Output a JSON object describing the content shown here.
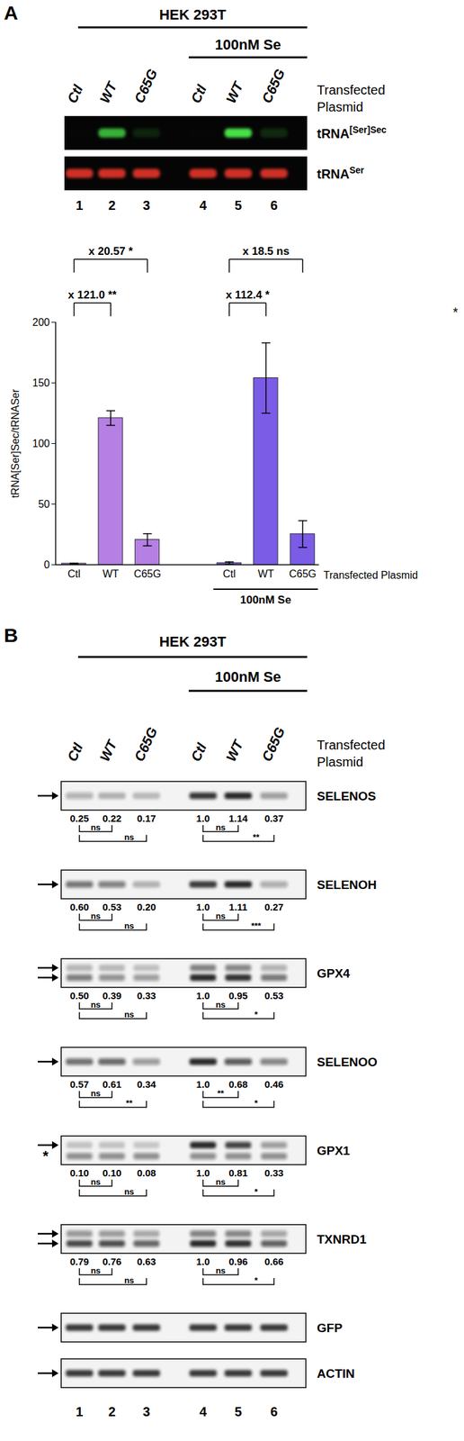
{
  "panel_a": {
    "label": "A",
    "cell_line": "HEK 293T",
    "treatment": {
      "text": "100nM Se",
      "lanes": [
        4,
        6
      ]
    },
    "lanes": [
      "Ctl",
      "WT",
      "C65G",
      "Ctl",
      "WT",
      "C65G"
    ],
    "lane_title": "Transfected Plasmid",
    "lane_numbers": [
      1,
      2,
      3,
      4,
      5,
      6
    ],
    "blots": [
      {
        "name": {
          "base": "tRNA",
          "sup": "[Ser]Sec"
        },
        "color": "#46e046"
      },
      {
        "name": {
          "base": "tRNA",
          "sup": "Ser"
        },
        "color": "#e5332a"
      }
    ],
    "stray_mark": "*"
  },
  "chart_data": {
    "type": "bar",
    "ylabel": "tRNA[Ser]Sec/tRNASer",
    "xlabel": "Transfected Plasmid",
    "ylim": [
      0,
      200
    ],
    "yticks": [
      0,
      50,
      100,
      150,
      200
    ],
    "groups": [
      {
        "categories": [
          "Ctl",
          "WT",
          "C65G"
        ],
        "values": [
          1,
          121,
          20.6
        ],
        "errors": [
          0.2,
          6,
          5
        ],
        "color": "#b57fe3"
      },
      {
        "label": "100nM Se",
        "categories": [
          "Ctl",
          "WT",
          "C65G"
        ],
        "values": [
          1.37,
          154,
          25.3
        ],
        "errors": [
          1,
          29,
          11
        ],
        "color": "#7a5ce6"
      }
    ],
    "comparisons": [
      {
        "group": 0,
        "from": "Ctl",
        "to": "C65G",
        "label": "x 20.57 *"
      },
      {
        "group": 0,
        "from": "Ctl",
        "to": "WT",
        "label": "x 121.0 **"
      },
      {
        "group": 1,
        "from": "Ctl",
        "to": "C65G",
        "label": "x 18.5 ns"
      },
      {
        "group": 1,
        "from": "Ctl",
        "to": "WT",
        "label": "x 112.4 *"
      }
    ]
  },
  "panel_b": {
    "label": "B",
    "cell_line": "HEK 293T",
    "treatment": {
      "text": "100nM Se",
      "lanes": [
        4,
        6
      ]
    },
    "lanes": [
      "Ctl",
      "WT",
      "C65G",
      "Ctl",
      "WT",
      "C65G"
    ],
    "lane_title": "Transfected Plasmid",
    "lane_numbers": [
      1,
      2,
      3,
      4,
      5,
      6
    ],
    "blots": [
      {
        "name": "SELENOS",
        "arrows": 1,
        "values": [
          0.25,
          0.22,
          0.17,
          1.0,
          1.14,
          0.37
        ],
        "value_labels": [
          "0.25",
          "0.22",
          "0.17",
          "1.0",
          "1.14",
          "0.37"
        ],
        "comparisons": [
          {
            "from": 1,
            "to": 2,
            "label": "ns"
          },
          {
            "from": 1,
            "to": 3,
            "label": "ns"
          },
          {
            "from": 4,
            "to": 5,
            "label": "ns"
          },
          {
            "from": 4,
            "to": 6,
            "label": "**"
          }
        ]
      },
      {
        "name": "SELENOH",
        "arrows": 1,
        "values": [
          0.6,
          0.53,
          0.2,
          1.0,
          1.11,
          0.27
        ],
        "value_labels": [
          "0.60",
          "0.53",
          "0.20",
          "1.0",
          "1.11",
          "0.27"
        ],
        "comparisons": [
          {
            "from": 1,
            "to": 2,
            "label": "ns"
          },
          {
            "from": 1,
            "to": 3,
            "label": "ns"
          },
          {
            "from": 4,
            "to": 5,
            "label": "ns"
          },
          {
            "from": 4,
            "to": 6,
            "label": "***"
          }
        ]
      },
      {
        "name": "GPX4",
        "arrows": 2,
        "values": [
          0.5,
          0.39,
          0.33,
          1.0,
          0.95,
          0.53
        ],
        "value_labels": [
          "0.50",
          "0.39",
          "0.33",
          "1.0",
          "0.95",
          "0.53"
        ],
        "comparisons": [
          {
            "from": 1,
            "to": 2,
            "label": "ns"
          },
          {
            "from": 1,
            "to": 3,
            "label": "ns"
          },
          {
            "from": 4,
            "to": 5,
            "label": "ns"
          },
          {
            "from": 4,
            "to": 6,
            "label": "*"
          }
        ]
      },
      {
        "name": "SELENOO",
        "arrows": 1,
        "values": [
          0.57,
          0.61,
          0.34,
          1.0,
          0.68,
          0.46
        ],
        "value_labels": [
          "0.57",
          "0.61",
          "0.34",
          "1.0",
          "0.68",
          "0.46"
        ],
        "comparisons": [
          {
            "from": 1,
            "to": 2,
            "label": "ns"
          },
          {
            "from": 1,
            "to": 3,
            "label": "**"
          },
          {
            "from": 4,
            "to": 5,
            "label": "**"
          },
          {
            "from": 4,
            "to": 6,
            "label": "*"
          }
        ]
      },
      {
        "name": "GPX1",
        "arrows": 1,
        "star": "*",
        "values": [
          0.1,
          0.1,
          0.08,
          1.0,
          0.81,
          0.33
        ],
        "value_labels": [
          "0.10",
          "0.10",
          "0.08",
          "1.0",
          "0.81",
          "0.33"
        ],
        "comparisons": [
          {
            "from": 1,
            "to": 2,
            "label": "ns"
          },
          {
            "from": 1,
            "to": 3,
            "label": "ns"
          },
          {
            "from": 4,
            "to": 5,
            "label": "ns"
          },
          {
            "from": 4,
            "to": 6,
            "label": "*"
          }
        ]
      },
      {
        "name": "TXNRD1",
        "arrows": 2,
        "values": [
          0.79,
          0.76,
          0.63,
          1.0,
          0.96,
          0.66
        ],
        "value_labels": [
          "0.79",
          "0.76",
          "0.63",
          "1.0",
          "0.96",
          "0.66"
        ],
        "comparisons": [
          {
            "from": 1,
            "to": 2,
            "label": "ns"
          },
          {
            "from": 1,
            "to": 3,
            "label": "ns"
          },
          {
            "from": 4,
            "to": 5,
            "label": "ns"
          },
          {
            "from": 4,
            "to": 6,
            "label": "*"
          }
        ]
      },
      {
        "name": "GFP",
        "arrows": 1
      },
      {
        "name": "ACTIN",
        "arrows": 1
      }
    ]
  }
}
